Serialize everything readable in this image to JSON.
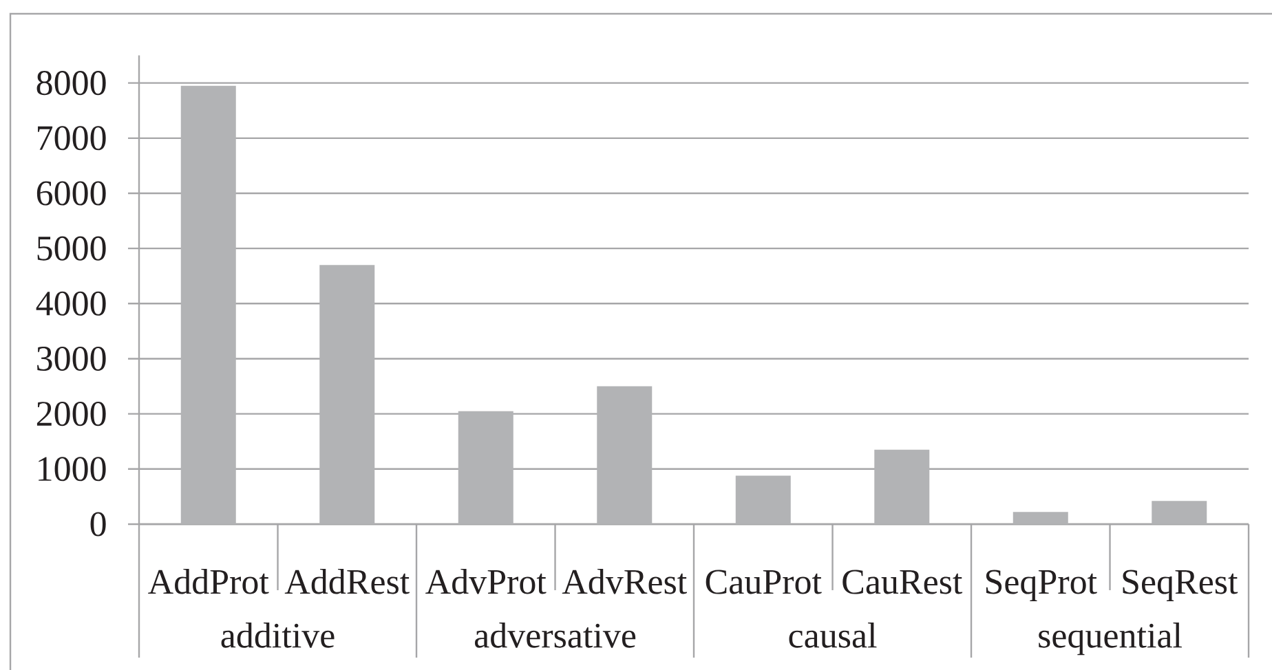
{
  "chart_data": {
    "type": "bar",
    "categories": [
      "AddProt",
      "AddRest",
      "AdvProt",
      "AdvRest",
      "CauProt",
      "CauRest",
      "SeqProt",
      "SeqRest"
    ],
    "values": [
      7950,
      4700,
      2050,
      2500,
      880,
      1350,
      220,
      420
    ],
    "color": "#b2b3b5",
    "ylim": [
      0,
      8500
    ],
    "yticks": [
      0,
      1000,
      2000,
      3000,
      4000,
      5000,
      6000,
      7000,
      8000
    ],
    "grid": "y",
    "annotations": [
      "additive",
      "adversative",
      "causal",
      "sequential"
    ]
  }
}
